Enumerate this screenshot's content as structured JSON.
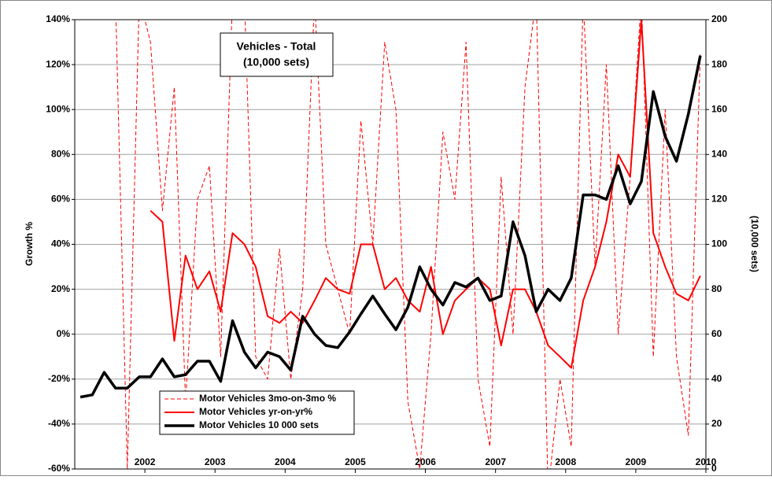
{
  "chart_data": {
    "type": "line",
    "title": [
      "Vehicles - Total",
      "(10,000 sets)"
    ],
    "ylabel": "Growth %",
    "y2label": "(10,000 sets)",
    "x": [
      2001.08,
      2001.25,
      2001.42,
      2001.58,
      2001.75,
      2001.92,
      2002.08,
      2002.25,
      2002.42,
      2002.58,
      2002.75,
      2002.92,
      2003.08,
      2003.25,
      2003.42,
      2003.58,
      2003.75,
      2003.92,
      2004.08,
      2004.25,
      2004.42,
      2004.58,
      2004.75,
      2004.92,
      2005.08,
      2005.25,
      2005.42,
      2005.58,
      2005.75,
      2005.92,
      2006.08,
      2006.25,
      2006.42,
      2006.58,
      2006.75,
      2006.92,
      2007.08,
      2007.25,
      2007.42,
      2007.58,
      2007.75,
      2007.92,
      2008.08,
      2008.25,
      2008.42,
      2008.58,
      2008.75,
      2008.92,
      2009.08,
      2009.25,
      2009.42,
      2009.58,
      2009.75,
      2009.92
    ],
    "series": [
      {
        "name": "Motor Vehicles 3mo-on-3mo %",
        "color": "#ff0000",
        "style": "dashed",
        "values": [
          null,
          null,
          null,
          150,
          -60,
          150,
          130,
          55,
          110,
          -30,
          60,
          75,
          -10,
          150,
          150,
          -10,
          -20,
          38,
          -20,
          20,
          150,
          40,
          20,
          0,
          95,
          40,
          130,
          100,
          -30,
          -60,
          0,
          90,
          60,
          130,
          -20,
          -50,
          70,
          0,
          110,
          150,
          -70,
          -20,
          -50,
          150,
          30,
          120,
          0,
          70,
          150,
          -10,
          100,
          -10,
          -45,
          125
        ]
      },
      {
        "name": "Motor Vehicles yr-on-yr%",
        "color": "#ff0000",
        "style": "solid",
        "values": [
          null,
          null,
          null,
          null,
          null,
          null,
          55,
          50,
          -3,
          35,
          20,
          28,
          10,
          45,
          40,
          30,
          8,
          5,
          10,
          5,
          15,
          25,
          20,
          18,
          40,
          40,
          20,
          25,
          15,
          10,
          30,
          0,
          15,
          20,
          25,
          20,
          -5,
          20,
          20,
          10,
          -5,
          -10,
          -15,
          15,
          30,
          50,
          80,
          70,
          140,
          45,
          30,
          18,
          15,
          26
        ]
      },
      {
        "name": "Motor Vehicles 10 000 sets",
        "color": "#000000",
        "style": "thick",
        "axis": "y2",
        "values": [
          32,
          33,
          43,
          36,
          36,
          41,
          41,
          49,
          41,
          42,
          48,
          48,
          39,
          66,
          52,
          45,
          52,
          50,
          44,
          68,
          60,
          55,
          54,
          61,
          69,
          77,
          69,
          62,
          72,
          90,
          80,
          73,
          83,
          81,
          85,
          75,
          77,
          110,
          95,
          70,
          80,
          75,
          85,
          122,
          122,
          120,
          135,
          118,
          128,
          168,
          148,
          137,
          158,
          184
        ]
      }
    ],
    "xlim": [
      2001,
      2010
    ],
    "xticks": [
      2002,
      2003,
      2004,
      2005,
      2006,
      2007,
      2008,
      2009,
      2010
    ],
    "ylim": [
      -60,
      140
    ],
    "yticks": [
      {
        "value": -60,
        "label": "-60%"
      },
      {
        "value": -40,
        "label": "-40%"
      },
      {
        "value": -20,
        "label": "-20%"
      },
      {
        "value": 0,
        "label": "0%"
      },
      {
        "value": 20,
        "label": "20%"
      },
      {
        "value": 40,
        "label": "40%"
      },
      {
        "value": 60,
        "label": "60%"
      },
      {
        "value": 80,
        "label": "80%"
      },
      {
        "value": 100,
        "label": "100%"
      },
      {
        "value": 120,
        "label": "120%"
      },
      {
        "value": 140,
        "label": "140%"
      }
    ],
    "y2lim": [
      0,
      200
    ],
    "y2ticks": [
      0,
      20,
      40,
      60,
      80,
      100,
      120,
      140,
      160,
      180,
      200
    ],
    "grid": true,
    "legend": "lower left"
  }
}
